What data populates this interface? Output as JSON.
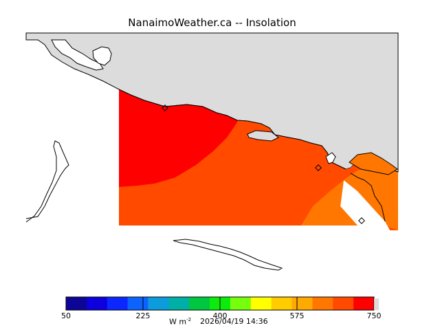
{
  "title": "NanaimoWeather.ca -- Insolation",
  "colorbar": {
    "ticks": [
      "50",
      "225",
      "400",
      "575",
      "750"
    ],
    "units_base": "W m",
    "units_exp": "-2",
    "timestamp": "2026/04/19 14:36",
    "colors": [
      "#0c0596",
      "#0c00dc",
      "#0c26ff",
      "#0c63ff",
      "#0c9cdc",
      "#00b0a6",
      "#00c73f",
      "#0cec0c",
      "#76ff0c",
      "#ffff00",
      "#ffcc00",
      "#ffaa00",
      "#ff7700",
      "#ff4a00",
      "#ff0000"
    ],
    "min": 50,
    "max": 750
  },
  "map": {
    "land_color": "#dcdcdc",
    "coast_color": "#000000",
    "station_marker": "diamond-marker"
  }
}
